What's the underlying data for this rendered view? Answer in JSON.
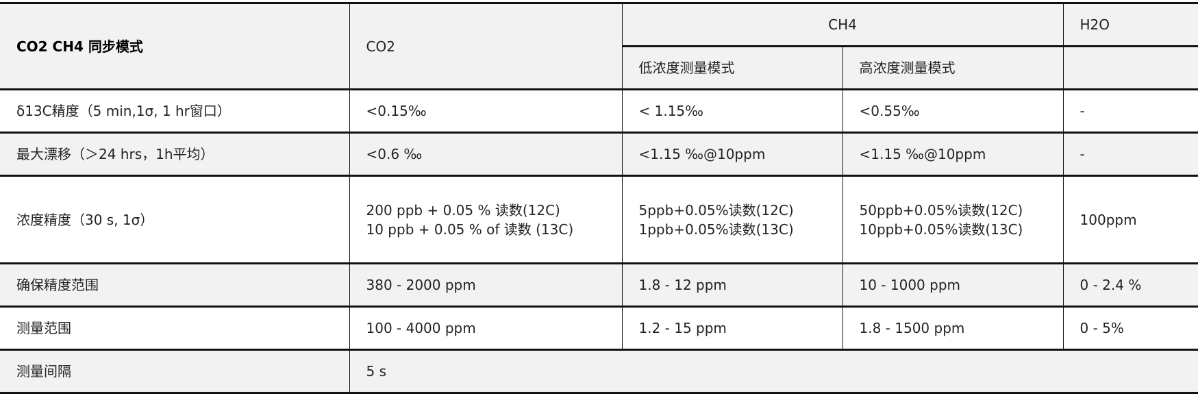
{
  "header": {
    "mode_title": "CO2 CH4 同步模式",
    "co2": "CO2",
    "ch4": "CH4",
    "h2o": "H2O",
    "ch4_low": "低浓度测量模式",
    "ch4_high": "高浓度测量模式"
  },
  "rows": [
    {
      "label": "δ13C精度（5 min,1σ, 1 hr窗口）",
      "co2": "<0.15‰",
      "ch4_low": "< 1.15‰",
      "ch4_high": "<0.55‰",
      "h2o": "-"
    },
    {
      "label": "最大漂移（＞24 hrs，1h平均）",
      "co2": "<0.6 ‰",
      "ch4_low": "<1.15 ‰@10ppm",
      "ch4_high": "<1.15 ‰@10ppm",
      "h2o": "-"
    },
    {
      "label": "浓度精度（30 s, 1σ）",
      "co2": "200 ppb + 0.05 % 读数(12C)",
      "co2_2": "10 ppb + 0.05 % of 读数 (13C)",
      "ch4_low": "5ppb+0.05%读数(12C)",
      "ch4_low_2": "1ppb+0.05%读数(13C)",
      "ch4_high": "50ppb+0.05%读数(12C)",
      "ch4_high_2": "10ppb+0.05%读数(13C)",
      "h2o": "100ppm"
    },
    {
      "label": "确保精度范围",
      "co2": "380 - 2000 ppm",
      "ch4_low": "1.8 - 12 ppm",
      "ch4_high": "10 - 1000 ppm",
      "h2o": "0 - 2.4 %"
    },
    {
      "label": "测量范围",
      "co2": "100 - 4000 ppm",
      "ch4_low": "1.2 - 15 ppm",
      "ch4_high": "1.8 - 1500 ppm",
      "h2o": "0 - 5%"
    },
    {
      "label": "测量间隔",
      "value": "5 s"
    }
  ]
}
